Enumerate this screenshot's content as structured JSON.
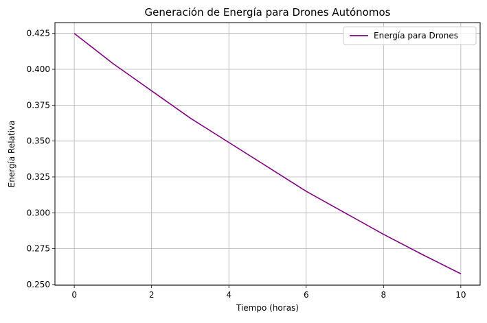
{
  "chart_data": {
    "type": "line",
    "title": "Generación de Energía para Drones Autónomos",
    "xlabel": "Tiempo (horas)",
    "ylabel": "Energía Relativa",
    "xlim": [
      -0.5,
      10.5
    ],
    "ylim": [
      0.2495,
      0.4325
    ],
    "x_ticks": [
      0,
      2,
      4,
      6,
      8,
      10
    ],
    "x_tick_labels": [
      "0",
      "2",
      "4",
      "6",
      "8",
      "10"
    ],
    "y_ticks": [
      0.25,
      0.275,
      0.3,
      0.325,
      0.35,
      0.375,
      0.4,
      0.425
    ],
    "y_tick_labels": [
      "0.250",
      "0.275",
      "0.300",
      "0.325",
      "0.350",
      "0.375",
      "0.400",
      "0.425"
    ],
    "grid": true,
    "legend_position": "top-right",
    "series": [
      {
        "name": "Energía para Drones",
        "color": "#800080",
        "x": [
          0,
          1,
          2,
          3,
          4,
          5,
          6,
          7,
          8,
          9,
          10
        ],
        "y": [
          0.425,
          0.404,
          0.385,
          0.366,
          0.349,
          0.332,
          0.315,
          0.3,
          0.285,
          0.271,
          0.2575
        ]
      }
    ]
  }
}
